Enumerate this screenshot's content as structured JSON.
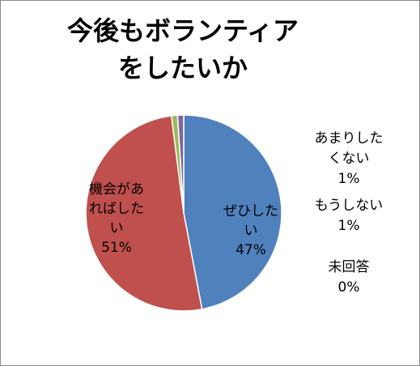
{
  "chart_data": {
    "type": "pie",
    "title": "今後もボランティアをしたいか",
    "title_lines": [
      "今後もボランティア",
      "をしたいか"
    ],
    "slices": [
      {
        "label": "ぜひしたい",
        "label_lines": [
          "ぜひした",
          "い"
        ],
        "value": 47,
        "value_text": "47%",
        "color": "#4f81bd"
      },
      {
        "label": "機会があればしたい",
        "label_lines": [
          "機会があ",
          "ればした",
          "い"
        ],
        "value": 51,
        "value_text": "51%",
        "color": "#c0504d"
      },
      {
        "label": "あまりしたくない",
        "label_lines": [
          "あまりした",
          "くない"
        ],
        "value": 1,
        "value_text": "1%",
        "color": "#9bbb59"
      },
      {
        "label": "もうしない",
        "label_lines": [
          "もうしない"
        ],
        "value": 1,
        "value_text": "1%",
        "color": "#8064a2"
      },
      {
        "label": "未回答",
        "label_lines": [
          "未回答"
        ],
        "value": 0,
        "value_text": "0%",
        "color": "#4bacc6"
      }
    ],
    "legend": "none"
  }
}
